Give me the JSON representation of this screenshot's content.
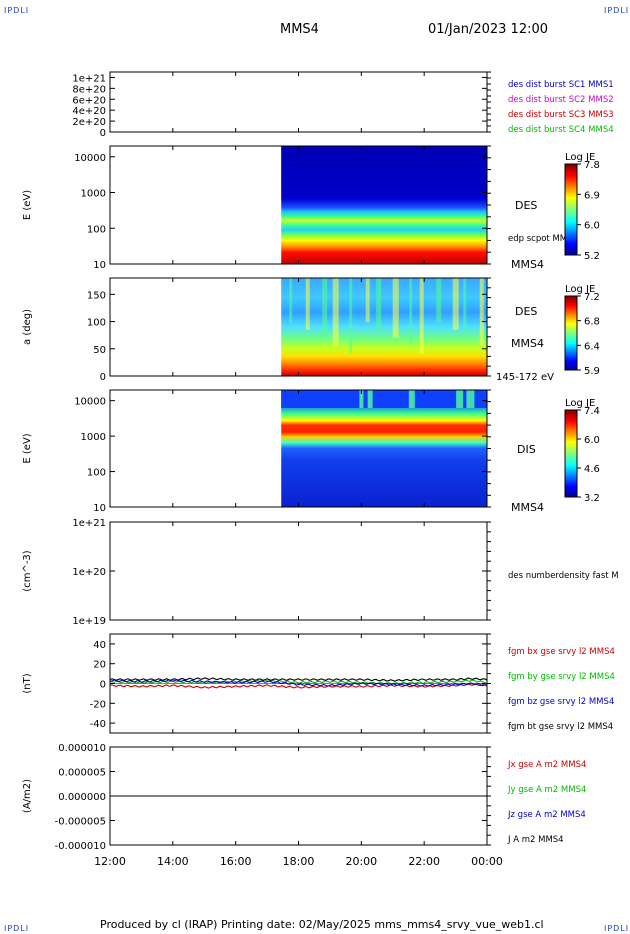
{
  "header": {
    "corner_label": "IPDLI",
    "spacecraft": "MMS4",
    "datetime": "01/Jan/2023 12:00"
  },
  "footer": {
    "text": "Produced by cl (IRAP)   Printing date: 02/May/2025   mms_mms4_srvy_vue_web1.cl"
  },
  "colors": {
    "blue": "#0000cc",
    "magenta": "#cc00cc",
    "red": "#cc0000",
    "green": "#00bb00",
    "black": "#000000"
  },
  "chart_data": [
    {
      "id": "p1",
      "type": "line",
      "yticks": [
        "0",
        "2e+20",
        "4e+20",
        "6e+20",
        "8e+20",
        "1e+21"
      ],
      "ylim": [
        0,
        1.1e+21
      ],
      "legend": [
        {
          "label": "des dist burst SC1 MMS1",
          "color": "#0000cc"
        },
        {
          "label": "des dist burst SC2 MMS2",
          "color": "#cc00cc"
        },
        {
          "label": "des dist burst SC3 MMS3",
          "color": "#cc0000"
        },
        {
          "label": "des dist burst SC4 MMS4",
          "color": "#00bb00"
        }
      ],
      "series": [
        {
          "values": [
            0,
            0
          ]
        }
      ]
    },
    {
      "id": "p2",
      "type": "heatmap",
      "ylabel": "E (eV)",
      "yscale": "log",
      "ylim": [
        10,
        20000
      ],
      "yticks": [
        "10",
        "100",
        "1000",
        "10000"
      ],
      "data_start_hour": 17.45,
      "side_labels": [
        "DES",
        "MMS4"
      ],
      "overlay_label": "edp scpot MMS4",
      "colorbar": {
        "title": "Log JE",
        "ticks": [
          "7.8",
          "6.9",
          "6.0",
          "5.2"
        ]
      }
    },
    {
      "id": "p3",
      "type": "heatmap",
      "ylabel": "a (deg)",
      "ylim": [
        0,
        180
      ],
      "yticks": [
        "0",
        "50",
        "100",
        "150"
      ],
      "data_start_hour": 17.45,
      "side_labels": [
        "DES",
        "MMS4",
        "145-172 eV"
      ],
      "colorbar": {
        "title": "Log JE",
        "ticks": [
          "7.2",
          "6.8",
          "6.4",
          "5.9"
        ]
      }
    },
    {
      "id": "p4",
      "type": "heatmap",
      "ylabel": "E (eV)",
      "yscale": "log",
      "ylim": [
        10,
        20000
      ],
      "yticks": [
        "10",
        "100",
        "1000",
        "10000"
      ],
      "data_start_hour": 17.45,
      "side_labels": [
        "DIS",
        "MMS4"
      ],
      "colorbar": {
        "title": "Log JE",
        "ticks": [
          "7.4",
          "6.0",
          "4.6",
          "3.2"
        ]
      }
    },
    {
      "id": "p5",
      "type": "line",
      "ylabel": "(cm^-3)",
      "yscale": "log",
      "ylim": [
        1e+19,
        1e+21
      ],
      "yticks": [
        "1e+19",
        "1e+20",
        "1e+21"
      ],
      "legend": [
        {
          "label": "des numberdensity fast M",
          "color": "#000000"
        }
      ]
    },
    {
      "id": "p6",
      "type": "line",
      "ylabel": "(nT)",
      "ylim": [
        -50,
        50
      ],
      "yticks": [
        "-40",
        "-20",
        "0",
        "20",
        "40"
      ],
      "x": [
        12,
        13,
        14,
        15,
        16,
        17,
        18,
        19,
        20,
        21,
        22,
        23,
        23.5,
        24
      ],
      "legend": [
        {
          "label": "fgm bx gse srvy l2 MMS4",
          "color": "#cc0000"
        },
        {
          "label": "fgm by gse srvy l2 MMS4",
          "color": "#00bb00"
        },
        {
          "label": "fgm bz gse srvy l2 MMS4",
          "color": "#0000cc"
        },
        {
          "label": "fgm bt gse srvy l2 MMS4",
          "color": "#000000"
        }
      ],
      "series": [
        {
          "color": "#cc0000",
          "values": [
            -2,
            -3,
            -2,
            -4,
            -3,
            -2,
            -4,
            -3,
            -3,
            -2,
            -3,
            -2,
            -1,
            -2
          ]
        },
        {
          "color": "#00bb00",
          "values": [
            2,
            1,
            2,
            1,
            2,
            3,
            1,
            2,
            1,
            0,
            1,
            2,
            3,
            1
          ]
        },
        {
          "color": "#0000cc",
          "values": [
            3,
            2,
            3,
            2,
            1,
            2,
            -1,
            -2,
            0,
            -1,
            -2,
            -1,
            0,
            -2
          ]
        },
        {
          "color": "#000000",
          "values": [
            4,
            4,
            4,
            5,
            4,
            4,
            4,
            4,
            4,
            3,
            4,
            4,
            5,
            4
          ]
        }
      ]
    },
    {
      "id": "p7",
      "type": "line",
      "ylabel": "(A/m2)",
      "ylim": [
        -1e-05,
        1e-05
      ],
      "yticks": [
        "-0.000010",
        "-0.000005",
        "0.000000",
        "0.000005",
        "0.000010"
      ],
      "x": [
        12,
        24
      ],
      "legend": [
        {
          "label": "Jx gse A m2 MMS4",
          "color": "#cc0000"
        },
        {
          "label": "Jy gse A m2 MMS4",
          "color": "#00bb00"
        },
        {
          "label": "Jz gse A m2 MMS4",
          "color": "#0000cc"
        },
        {
          "label": "J A m2 MMS4",
          "color": "#000000"
        }
      ],
      "series": [
        {
          "color": "#000000",
          "values": [
            0,
            0
          ]
        }
      ]
    }
  ],
  "xaxis": {
    "xlim": [
      12,
      24
    ],
    "ticks": [
      "12:00",
      "14:00",
      "16:00",
      "18:00",
      "20:00",
      "22:00",
      "00:00"
    ]
  }
}
